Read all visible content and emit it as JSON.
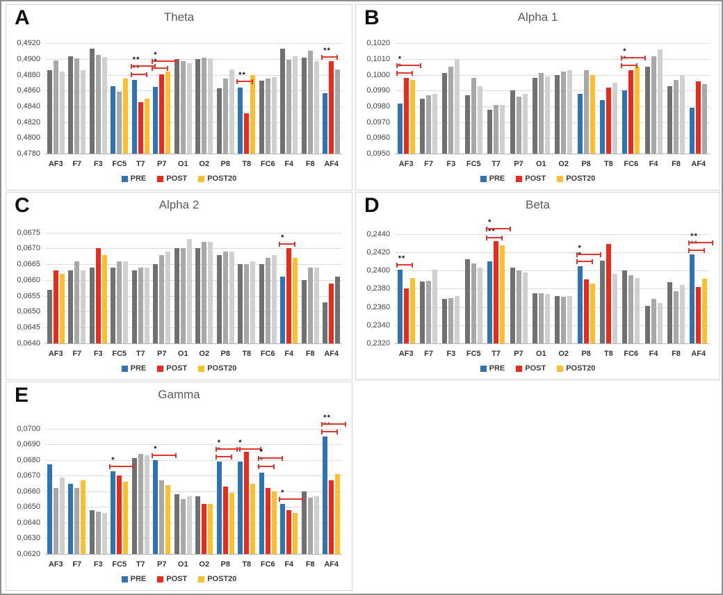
{
  "figure_legend": {
    "items": [
      {
        "label": "PRE",
        "color_key": "blue"
      },
      {
        "label": "POST",
        "color_key": "red"
      },
      {
        "label": "POST20",
        "color_key": "yellow"
      }
    ]
  },
  "palette": {
    "blue": "#2e74b5",
    "red": "#ea2a1d",
    "yellow": "#fdbf2d",
    "darkgray": "#707070",
    "gray": "#a8a8a8",
    "lightgray": "#d0d0d0",
    "grid": "#dcdcdc",
    "axis": "#b5b5b5",
    "bracket": "#e0352b",
    "title": "#595959"
  },
  "chart_data": [
    {
      "panel_label": "A",
      "title": "Theta",
      "type": "bar",
      "legend_position": "bottom",
      "grid": true,
      "decimal_separator": ",",
      "categories": [
        "AF3",
        "F7",
        "F3",
        "FC5",
        "T7",
        "P7",
        "O1",
        "O2",
        "P8",
        "T8",
        "FC6",
        "F4",
        "F8",
        "AF4"
      ],
      "series": [
        {
          "name": "PRE",
          "values": [
            0.4886,
            0.4904,
            0.4913,
            0.4866,
            0.4874,
            0.4865,
            0.49,
            0.49,
            0.4863,
            0.4864,
            0.4873,
            0.4913,
            0.4902,
            0.4857
          ]
        },
        {
          "name": "POST",
          "values": [
            0.4898,
            0.4901,
            0.4905,
            0.4859,
            0.4845,
            0.4881,
            0.4897,
            0.4902,
            0.4875,
            0.4831,
            0.4875,
            0.4899,
            0.4911,
            0.4897
          ]
        },
        {
          "name": "POST20",
          "values": [
            0.4884,
            0.4886,
            0.4903,
            0.4875,
            0.485,
            0.4884,
            0.4895,
            0.4901,
            0.4887,
            0.488,
            0.4877,
            0.4904,
            0.4897,
            0.4887
          ]
        }
      ],
      "bar_colors": [
        [
          "darkgray",
          "gray",
          "lightgray"
        ],
        [
          "darkgray",
          "gray",
          "lightgray"
        ],
        [
          "darkgray",
          "gray",
          "lightgray"
        ],
        [
          "blue",
          "gray",
          "yellow"
        ],
        [
          "blue",
          "red",
          "yellow"
        ],
        [
          "blue",
          "red",
          "yellow"
        ],
        [
          "darkgray",
          "gray",
          "lightgray"
        ],
        [
          "darkgray",
          "gray",
          "lightgray"
        ],
        [
          "darkgray",
          "gray",
          "lightgray"
        ],
        [
          "blue",
          "red",
          "yellow"
        ],
        [
          "darkgray",
          "gray",
          "lightgray"
        ],
        [
          "darkgray",
          "gray",
          "lightgray"
        ],
        [
          "darkgray",
          "gray",
          "lightgray"
        ],
        [
          "blue",
          "red",
          "gray"
        ]
      ],
      "ytick_labels": [
        "0,4780",
        "0,4800",
        "0,4820",
        "0,4840",
        "0,4860",
        "0,4880",
        "0,4900",
        "0,4920"
      ],
      "ytick_values": [
        0.478,
        0.48,
        0.482,
        0.484,
        0.486,
        0.488,
        0.49,
        0.492
      ],
      "ylim": [
        0.478,
        0.493
      ],
      "annotations": [
        {
          "channel": "T7",
          "pair": "PRE-POST",
          "sig": "**",
          "y": 0.4881
        },
        {
          "channel": "T7",
          "pair": "PRE-POST20",
          "sig": "**",
          "y": 0.4891
        },
        {
          "channel": "P7",
          "pair": "PRE-POST",
          "sig": "*",
          "y": 0.4889
        },
        {
          "channel": "P7",
          "pair": "PRE-POST20",
          "sig": "*",
          "y": 0.4897
        },
        {
          "channel": "T8",
          "pair": "PRE-POST",
          "sig": "**",
          "y": 0.4872
        },
        {
          "channel": "AF4",
          "pair": "PRE-POST",
          "sig": "**",
          "y": 0.4903
        }
      ]
    },
    {
      "panel_label": "B",
      "title": "Alpha 1",
      "type": "bar",
      "legend_position": "bottom",
      "grid": true,
      "decimal_separator": ",",
      "categories": [
        "AF3",
        "F7",
        "F3",
        "FC5",
        "T7",
        "P7",
        "O1",
        "O2",
        "P8",
        "T8",
        "FC6",
        "F4",
        "F8",
        "AF4"
      ],
      "series": [
        {
          "name": "PRE",
          "values": [
            0.0982,
            0.0985,
            0.1001,
            0.0987,
            0.0978,
            0.099,
            0.0998,
            0.1,
            0.0988,
            0.0984,
            0.099,
            0.1005,
            0.0993,
            0.0979
          ]
        },
        {
          "name": "POST",
          "values": [
            0.0998,
            0.0987,
            0.1005,
            0.0998,
            0.0981,
            0.0986,
            0.1001,
            0.1002,
            0.1003,
            0.0992,
            0.1003,
            0.1012,
            0.0997,
            0.0996
          ]
        },
        {
          "name": "POST20",
          "values": [
            0.0997,
            0.0988,
            0.101,
            0.0993,
            0.0981,
            0.0988,
            0.0999,
            0.1003,
            0.1,
            0.0995,
            0.1005,
            0.1016,
            0.1,
            0.0994
          ]
        }
      ],
      "bar_colors": [
        [
          "blue",
          "red",
          "yellow"
        ],
        [
          "darkgray",
          "gray",
          "lightgray"
        ],
        [
          "darkgray",
          "gray",
          "lightgray"
        ],
        [
          "darkgray",
          "gray",
          "lightgray"
        ],
        [
          "darkgray",
          "gray",
          "lightgray"
        ],
        [
          "darkgray",
          "gray",
          "lightgray"
        ],
        [
          "darkgray",
          "gray",
          "lightgray"
        ],
        [
          "darkgray",
          "gray",
          "lightgray"
        ],
        [
          "blue",
          "gray",
          "yellow"
        ],
        [
          "blue",
          "red",
          "lightgray"
        ],
        [
          "blue",
          "red",
          "yellow"
        ],
        [
          "darkgray",
          "gray",
          "lightgray"
        ],
        [
          "darkgray",
          "gray",
          "lightgray"
        ],
        [
          "blue",
          "red",
          "gray"
        ]
      ],
      "ytick_labels": [
        "0,0950",
        "0,0960",
        "0,0970",
        "0,0980",
        "0,0990",
        "0,1000",
        "0,1010",
        "0,1020"
      ],
      "ytick_values": [
        0.095,
        0.096,
        0.097,
        0.098,
        0.099,
        0.1,
        0.101,
        0.102
      ],
      "ylim": [
        0.095,
        0.1025
      ],
      "annotations": [
        {
          "channel": "AF3",
          "pair": "PRE-POST",
          "sig": "*",
          "y": 0.1001
        },
        {
          "channel": "AF3",
          "pair": "PRE-POST20",
          "sig": "*",
          "y": 0.1006
        },
        {
          "channel": "FC6",
          "pair": "PRE-POST",
          "sig": "*",
          "y": 0.1006
        },
        {
          "channel": "FC6",
          "pair": "PRE-POST20",
          "sig": "*",
          "y": 0.1011
        }
      ]
    },
    {
      "panel_label": "C",
      "title": "Alpha 2",
      "type": "bar",
      "legend_position": "bottom",
      "grid": true,
      "decimal_separator": ",",
      "categories": [
        "AF3",
        "F7",
        "F3",
        "FC5",
        "T7",
        "P7",
        "O1",
        "O2",
        "P8",
        "T8",
        "FC6",
        "F4",
        "F8",
        "AF4"
      ],
      "series": [
        {
          "name": "PRE",
          "values": [
            0.0657,
            0.0663,
            0.0664,
            0.0664,
            0.0663,
            0.0665,
            0.067,
            0.067,
            0.0668,
            0.0665,
            0.0665,
            0.0661,
            0.066,
            0.0653
          ]
        },
        {
          "name": "POST",
          "values": [
            0.0663,
            0.0666,
            0.067,
            0.0666,
            0.0664,
            0.0668,
            0.067,
            0.0672,
            0.0669,
            0.0665,
            0.0667,
            0.067,
            0.0664,
            0.0659
          ]
        },
        {
          "name": "POST20",
          "values": [
            0.0662,
            0.0663,
            0.0668,
            0.0666,
            0.0664,
            0.0669,
            0.0673,
            0.0672,
            0.0669,
            0.0666,
            0.0668,
            0.0667,
            0.0664,
            0.0661
          ]
        }
      ],
      "bar_colors": [
        [
          "darkgray",
          "red",
          "yellow"
        ],
        [
          "darkgray",
          "gray",
          "lightgray"
        ],
        [
          "darkgray",
          "red",
          "yellow"
        ],
        [
          "darkgray",
          "gray",
          "lightgray"
        ],
        [
          "darkgray",
          "gray",
          "lightgray"
        ],
        [
          "darkgray",
          "gray",
          "lightgray"
        ],
        [
          "darkgray",
          "gray",
          "lightgray"
        ],
        [
          "darkgray",
          "gray",
          "lightgray"
        ],
        [
          "darkgray",
          "gray",
          "lightgray"
        ],
        [
          "darkgray",
          "gray",
          "lightgray"
        ],
        [
          "darkgray",
          "gray",
          "lightgray"
        ],
        [
          "blue",
          "red",
          "yellow"
        ],
        [
          "darkgray",
          "gray",
          "lightgray"
        ],
        [
          "darkgray",
          "red",
          "darkgray"
        ]
      ],
      "ytick_labels": [
        "0,0640",
        "0,0645",
        "0,0650",
        "0,0655",
        "0,0660",
        "0,0665",
        "0,0670",
        "0,0675"
      ],
      "ytick_values": [
        0.064,
        0.0645,
        0.065,
        0.0655,
        0.066,
        0.0665,
        0.067,
        0.0675
      ],
      "ylim": [
        0.064,
        0.0678
      ],
      "annotations": [
        {
          "channel": "F4",
          "pair": "PRE-POST",
          "sig": "*",
          "y": 0.06715
        }
      ]
    },
    {
      "panel_label": "D",
      "title": "Beta",
      "type": "bar",
      "legend_position": "bottom",
      "grid": true,
      "decimal_separator": ",",
      "categories": [
        "AF3",
        "F7",
        "F3",
        "FC5",
        "T7",
        "P7",
        "O1",
        "O2",
        "P8",
        "T8",
        "FC6",
        "F4",
        "F8",
        "AF4"
      ],
      "series": [
        {
          "name": "PRE",
          "values": [
            0.2401,
            0.2388,
            0.2369,
            0.2412,
            0.241,
            0.2403,
            0.2375,
            0.2372,
            0.2405,
            0.2411,
            0.24,
            0.2361,
            0.2387,
            0.2418
          ]
        },
        {
          "name": "POST",
          "values": [
            0.238,
            0.2389,
            0.237,
            0.2408,
            0.2432,
            0.24,
            0.2375,
            0.2371,
            0.239,
            0.2429,
            0.2395,
            0.2369,
            0.2377,
            0.2382
          ]
        },
        {
          "name": "POST20",
          "values": [
            0.2392,
            0.2401,
            0.2372,
            0.2403,
            0.2428,
            0.2398,
            0.2374,
            0.2372,
            0.2386,
            0.2396,
            0.2392,
            0.2364,
            0.2384,
            0.2391
          ]
        }
      ],
      "bar_colors": [
        [
          "blue",
          "red",
          "yellow"
        ],
        [
          "darkgray",
          "gray",
          "lightgray"
        ],
        [
          "darkgray",
          "gray",
          "lightgray"
        ],
        [
          "darkgray",
          "gray",
          "lightgray"
        ],
        [
          "blue",
          "red",
          "yellow"
        ],
        [
          "darkgray",
          "gray",
          "lightgray"
        ],
        [
          "darkgray",
          "gray",
          "lightgray"
        ],
        [
          "darkgray",
          "gray",
          "lightgray"
        ],
        [
          "blue",
          "red",
          "yellow"
        ],
        [
          "darkgray",
          "red",
          "lightgray"
        ],
        [
          "darkgray",
          "gray",
          "lightgray"
        ],
        [
          "darkgray",
          "gray",
          "lightgray"
        ],
        [
          "darkgray",
          "gray",
          "lightgray"
        ],
        [
          "blue",
          "red",
          "yellow"
        ]
      ],
      "ytick_labels": [
        "0,2320",
        "0,2340",
        "0,2360",
        "0,2380",
        "0,2400",
        "0,2420",
        "0,2440"
      ],
      "ytick_values": [
        0.232,
        0.234,
        0.236,
        0.238,
        0.24,
        0.242,
        0.244
      ],
      "ylim": [
        0.232,
        0.2452
      ],
      "annotations": [
        {
          "channel": "AF3",
          "pair": "PRE-POST",
          "sig": "**",
          "y": 0.2406
        },
        {
          "channel": "T7",
          "pair": "PRE-POST",
          "sig": "**",
          "y": 0.2436
        },
        {
          "channel": "T7",
          "pair": "PRE-POST20",
          "sig": "*",
          "y": 0.2446
        },
        {
          "channel": "P8",
          "pair": "PRE-POST",
          "sig": "*",
          "y": 0.241
        },
        {
          "channel": "P8",
          "pair": "PRE-POST20",
          "sig": "*",
          "y": 0.2418
        },
        {
          "channel": "AF4",
          "pair": "PRE-POST",
          "sig": "**",
          "y": 0.2422
        },
        {
          "channel": "AF4",
          "pair": "PRE-POST20",
          "sig": "**",
          "y": 0.2431
        }
      ]
    },
    {
      "panel_label": "E",
      "title": "Gamma",
      "type": "bar",
      "legend_position": "bottom",
      "grid": true,
      "decimal_separator": ",",
      "categories": [
        "AF3",
        "F7",
        "F3",
        "FC5",
        "T7",
        "P7",
        "O1",
        "O2",
        "P8",
        "T8",
        "FC6",
        "F4",
        "F8",
        "AF4"
      ],
      "series": [
        {
          "name": "PRE",
          "values": [
            0.0677,
            0.0665,
            0.0648,
            0.0673,
            0.0681,
            0.068,
            0.0658,
            0.0657,
            0.0679,
            0.0679,
            0.0672,
            0.0652,
            0.066,
            0.0695
          ]
        },
        {
          "name": "POST",
          "values": [
            0.0662,
            0.0662,
            0.0647,
            0.067,
            0.0684,
            0.0667,
            0.0655,
            0.0652,
            0.0663,
            0.0685,
            0.0662,
            0.0648,
            0.0656,
            0.0667
          ]
        },
        {
          "name": "POST20",
          "values": [
            0.0669,
            0.0667,
            0.0646,
            0.0666,
            0.0683,
            0.0664,
            0.0657,
            0.0652,
            0.0659,
            0.0665,
            0.066,
            0.0646,
            0.0657,
            0.0671
          ]
        }
      ],
      "bar_colors": [
        [
          "blue",
          "gray",
          "lightgray"
        ],
        [
          "blue",
          "gray",
          "yellow"
        ],
        [
          "darkgray",
          "gray",
          "lightgray"
        ],
        [
          "blue",
          "red",
          "yellow"
        ],
        [
          "darkgray",
          "gray",
          "lightgray"
        ],
        [
          "blue",
          "gray",
          "yellow"
        ],
        [
          "darkgray",
          "gray",
          "lightgray"
        ],
        [
          "darkgray",
          "red",
          "yellow"
        ],
        [
          "blue",
          "red",
          "yellow"
        ],
        [
          "blue",
          "red",
          "yellow"
        ],
        [
          "blue",
          "red",
          "yellow"
        ],
        [
          "blue",
          "red",
          "yellow"
        ],
        [
          "darkgray",
          "gray",
          "lightgray"
        ],
        [
          "blue",
          "red",
          "yellow"
        ]
      ],
      "ytick_labels": [
        "0,0620",
        "0,0630",
        "0,0640",
        "0,0650",
        "0,0660",
        "0,0670",
        "0,0680",
        "0,0690",
        "0,0700"
      ],
      "ytick_values": [
        0.062,
        0.063,
        0.064,
        0.065,
        0.066,
        0.067,
        0.068,
        0.069,
        0.07
      ],
      "ylim": [
        0.062,
        0.071
      ],
      "annotations": [
        {
          "channel": "FC5",
          "pair": "PRE-POST20",
          "sig": "*",
          "y": 0.0676
        },
        {
          "channel": "P7",
          "pair": "PRE-POST20",
          "sig": "*",
          "y": 0.0683
        },
        {
          "channel": "P8",
          "pair": "PRE-POST",
          "sig": "*",
          "y": 0.0682
        },
        {
          "channel": "P8",
          "pair": "PRE-POST20",
          "sig": "*",
          "y": 0.0687
        },
        {
          "channel": "T8",
          "pair": "PRE-POST20",
          "sig": "*",
          "y": 0.0687
        },
        {
          "channel": "FC6",
          "pair": "PRE-POST",
          "sig": "*",
          "y": 0.0676
        },
        {
          "channel": "FC6",
          "pair": "PRE-POST20",
          "sig": "*",
          "y": 0.0681
        },
        {
          "channel": "F4",
          "pair": "PRE-POST20",
          "sig": "*",
          "y": 0.0655
        },
        {
          "channel": "AF4",
          "pair": "PRE-POST",
          "sig": "**",
          "y": 0.0698
        },
        {
          "channel": "AF4",
          "pair": "PRE-POST20",
          "sig": "**",
          "y": 0.0703
        }
      ]
    }
  ]
}
